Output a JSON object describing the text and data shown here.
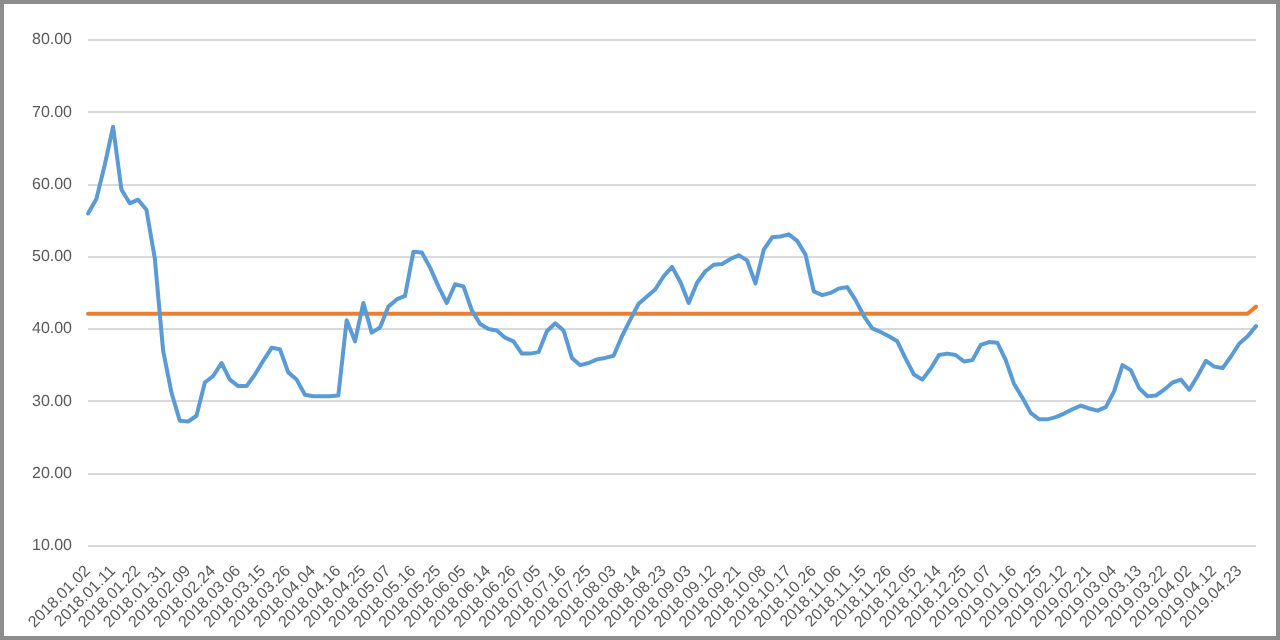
{
  "chart_data": {
    "type": "line",
    "categories": [
      "2018.01.02",
      null,
      null,
      "2018.01.11",
      null,
      null,
      "2018.01.22",
      null,
      null,
      "2018.01.31",
      null,
      null,
      "2018.02.09",
      null,
      null,
      "2018.02.24",
      null,
      null,
      "2018.03.06",
      null,
      null,
      "2018.03.15",
      null,
      null,
      "2018.03.26",
      null,
      null,
      "2018.04.04",
      null,
      null,
      "2018.04.16",
      null,
      null,
      "2018.04.25",
      null,
      null,
      "2018.05.07",
      null,
      null,
      "2018.05.16",
      null,
      null,
      "2018.05.25",
      null,
      null,
      "2018.06.05",
      null,
      null,
      "2018.06.14",
      null,
      null,
      "2018.06.26",
      null,
      null,
      "2018.07.05",
      null,
      null,
      "2018.07.16",
      null,
      null,
      "2018.07.25",
      null,
      null,
      "2018.08.03",
      null,
      null,
      "2018.08.14",
      null,
      null,
      "2018.08.23",
      null,
      null,
      "2018.09.03",
      null,
      null,
      "2018.09.12",
      null,
      null,
      "2018.09.21",
      null,
      null,
      "2018.10.08",
      null,
      null,
      "2018.10.17",
      null,
      null,
      "2018.10.26",
      null,
      null,
      "2018.11.06",
      null,
      null,
      "2018.11.15",
      null,
      null,
      "2018.11.26",
      null,
      null,
      "2018.12.05",
      null,
      null,
      "2018.12.14",
      null,
      null,
      "2018.12.25",
      null,
      null,
      "2019.01.07",
      null,
      null,
      "2019.01.16",
      null,
      null,
      "2019.01.25",
      null,
      null,
      "2019.02.12",
      null,
      null,
      "2019.02.21",
      null,
      null,
      "2019.03.04",
      null,
      null,
      "2019.03.13",
      null,
      null,
      "2019.03.22",
      null,
      null,
      "2019.04.02",
      null,
      null,
      "2019.04.12",
      null,
      null,
      "2019.04.23",
      null,
      null
    ],
    "series": [
      {
        "color": "#5b9bd5",
        "values": [
          56.0,
          58.0,
          62.7,
          68.0,
          59.3,
          57.4,
          57.9,
          56.5,
          49.8,
          37.0,
          31.2,
          27.3,
          27.2,
          28.0,
          32.6,
          33.5,
          35.3,
          33.0,
          32.1,
          32.1,
          33.7,
          35.6,
          37.4,
          37.2,
          34.0,
          33.0,
          30.9,
          30.7,
          30.7,
          30.7,
          30.8,
          41.2,
          38.3,
          43.6,
          39.5,
          40.2,
          43.1,
          44.1,
          44.6,
          50.7,
          50.6,
          48.5,
          45.9,
          43.6,
          46.2,
          45.9,
          42.6,
          40.7,
          40.0,
          39.8,
          38.8,
          38.3,
          36.6,
          36.6,
          36.8,
          39.7,
          40.8,
          39.8,
          36.0,
          35.0,
          35.3,
          35.8,
          36.0,
          36.3,
          39.0,
          41.3,
          43.5,
          44.5,
          45.5,
          47.3,
          48.6,
          46.5,
          43.6,
          46.4,
          48.0,
          48.9,
          49.0,
          49.7,
          50.2,
          49.5,
          46.3,
          51.0,
          52.7,
          52.8,
          53.1,
          52.2,
          50.3,
          45.2,
          44.7,
          45.0,
          45.6,
          45.8,
          44.0,
          41.8,
          40.1,
          39.6,
          39.0,
          38.3,
          35.9,
          33.7,
          33.0,
          34.5,
          36.4,
          36.6,
          36.4,
          35.5,
          35.7,
          37.8,
          38.2,
          38.1,
          35.7,
          32.4,
          30.5,
          28.4,
          27.5,
          27.5,
          27.8,
          28.3,
          28.9,
          29.4,
          29.0,
          28.7,
          29.2,
          31.4,
          35.0,
          34.3,
          31.8,
          30.7,
          30.8,
          31.6,
          32.6,
          33.0,
          31.6,
          33.5,
          35.6,
          34.8,
          34.6,
          36.2,
          38.0,
          39.0,
          40.4
        ]
      },
      {
        "color": "#ed7d31",
        "values": [
          42.1,
          42.1,
          42.1,
          42.1,
          42.1,
          42.1,
          42.1,
          42.1,
          42.1,
          42.1,
          42.1,
          42.1,
          42.1,
          42.1,
          42.1,
          42.1,
          42.1,
          42.1,
          42.1,
          42.1,
          42.1,
          42.1,
          42.1,
          42.1,
          42.1,
          42.1,
          42.1,
          42.1,
          42.1,
          42.1,
          42.1,
          42.1,
          42.1,
          42.1,
          42.1,
          42.1,
          42.1,
          42.1,
          42.1,
          42.1,
          42.1,
          42.1,
          42.1,
          42.1,
          42.1,
          42.1,
          42.1,
          42.1,
          42.1,
          42.1,
          42.1,
          42.1,
          42.1,
          42.1,
          42.1,
          42.1,
          42.1,
          42.1,
          42.1,
          42.1,
          42.1,
          42.1,
          42.1,
          42.1,
          42.1,
          42.1,
          42.1,
          42.1,
          42.1,
          42.1,
          42.1,
          42.1,
          42.1,
          42.1,
          42.1,
          42.1,
          42.1,
          42.1,
          42.1,
          42.1,
          42.1,
          42.1,
          42.1,
          42.1,
          42.1,
          42.1,
          42.1,
          42.1,
          42.1,
          42.1,
          42.1,
          42.1,
          42.1,
          42.1,
          42.1,
          42.1,
          42.1,
          42.1,
          42.1,
          42.1,
          42.1,
          42.1,
          42.1,
          42.1,
          42.1,
          42.1,
          42.1,
          42.1,
          42.1,
          42.1,
          42.1,
          42.1,
          42.1,
          42.1,
          42.1,
          42.1,
          42.1,
          42.1,
          42.1,
          42.1,
          42.1,
          42.1,
          42.1,
          42.1,
          42.1,
          42.1,
          42.1,
          42.1,
          42.1,
          42.1,
          42.1,
          42.1,
          42.1,
          42.1,
          42.1,
          42.1,
          42.1,
          42.1,
          42.1,
          42.1,
          43.1
        ]
      }
    ],
    "ylim": [
      10,
      80
    ],
    "yticks": [
      {
        "value": 10,
        "label": "10.00"
      },
      {
        "value": 20,
        "label": "20.00"
      },
      {
        "value": 30,
        "label": "30.00"
      },
      {
        "value": 40,
        "label": "40.00"
      },
      {
        "value": 50,
        "label": "50.00"
      },
      {
        "value": 60,
        "label": "60.00"
      },
      {
        "value": 70,
        "label": "70.00"
      },
      {
        "value": 80,
        "label": "80.00"
      }
    ],
    "grid": "y",
    "legend": false,
    "marker": "none",
    "line_style": "solid"
  }
}
